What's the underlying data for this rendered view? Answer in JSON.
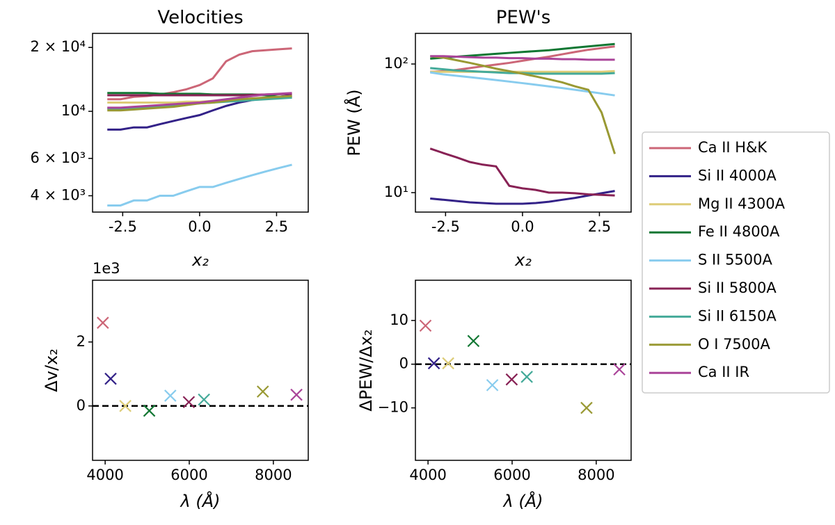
{
  "chart_data": [
    {
      "type": "line",
      "title": "Velocities",
      "xlabel": "x₂",
      "log_y": true,
      "x": [
        -3,
        -2.57,
        -2.14,
        -1.71,
        -1.29,
        -0.86,
        -0.43,
        0,
        0.43,
        0.86,
        1.29,
        1.71,
        2.14,
        2.57,
        3
      ],
      "xlim": [
        -3.48,
        3.53
      ],
      "xticks": [
        -2.5,
        {
          "value": 0,
          "label": "0.0"
        },
        2.5
      ],
      "ylim": [
        3350,
        23300
      ],
      "yticks": [
        {
          "value": 4000,
          "label": "4 × 10³"
        },
        {
          "value": 6000,
          "label": "6 × 10³"
        },
        {
          "value": 10000,
          "label": "10⁴"
        },
        {
          "value": 20000,
          "label": "2 × 10⁴"
        }
      ],
      "series": [
        {
          "name": "Ca II H&K",
          "color": "#cc6677",
          "values": [
            11400,
            11400,
            11700,
            11800,
            12000,
            12300,
            12700,
            13300,
            14300,
            17200,
            18500,
            19200,
            19400,
            19600,
            19800
          ]
        },
        {
          "name": "Si II 4000A",
          "color": "#332288",
          "values": [
            8200,
            8200,
            8400,
            8400,
            8700,
            9000,
            9300,
            9600,
            10100,
            10600,
            11000,
            11300,
            11500,
            11700,
            11900
          ]
        },
        {
          "name": "Mg II 4300A",
          "color": "#ddcc77",
          "values": [
            11000,
            11000,
            11000,
            11000,
            11000,
            11000,
            11100,
            11100,
            11200,
            11300,
            11400,
            11500,
            11600,
            11700,
            11800
          ]
        },
        {
          "name": "Fe II 4800A",
          "color": "#117733",
          "values": [
            12200,
            12200,
            12200,
            12200,
            12100,
            12100,
            12100,
            12100,
            12000,
            12000,
            12000,
            12000,
            11900,
            11700,
            11600
          ]
        },
        {
          "name": "S II 5500A",
          "color": "#88ccee",
          "values": [
            3600,
            3600,
            3800,
            3800,
            4000,
            4000,
            4200,
            4400,
            4400,
            4600,
            4800,
            5000,
            5200,
            5400,
            5600
          ]
        },
        {
          "name": "Si II 5800A",
          "color": "#882255",
          "values": [
            11900,
            11900,
            11900,
            11900,
            11900,
            11900,
            11900,
            11900,
            11900,
            11900,
            11900,
            11950,
            12000,
            12050,
            12100
          ]
        },
        {
          "name": "Si II 6150A",
          "color": "#44aa99",
          "values": [
            10300,
            10300,
            10400,
            10500,
            10600,
            10700,
            10800,
            10900,
            11000,
            11100,
            11200,
            11300,
            11400,
            11500,
            11600
          ]
        },
        {
          "name": "O I 7500A",
          "color": "#999933",
          "values": [
            10100,
            10100,
            10200,
            10300,
            10400,
            10500,
            10700,
            10900,
            11000,
            11200,
            11400,
            11500,
            11600,
            11700,
            11800
          ]
        },
        {
          "name": "Ca II IR",
          "color": "#aa4499",
          "values": [
            10400,
            10400,
            10500,
            10600,
            10700,
            10800,
            10900,
            11000,
            11200,
            11400,
            11600,
            11800,
            12000,
            12100,
            12200
          ]
        }
      ]
    },
    {
      "type": "line",
      "title": "PEW's",
      "xlabel": "x₂",
      "ylabel": "PEW (Å)",
      "log_y": true,
      "x": [
        -3,
        -2.57,
        -2.14,
        -1.71,
        -1.29,
        -0.86,
        -0.43,
        0,
        0.43,
        0.86,
        1.29,
        1.71,
        2.14,
        2.57,
        3
      ],
      "xlim": [
        -3.48,
        3.53
      ],
      "xticks": [
        -2.5,
        {
          "value": 0,
          "label": "0.0"
        },
        2.5
      ],
      "ylim": [
        7.06,
        173
      ],
      "yticks": [
        {
          "value": 10,
          "label": "10¹"
        },
        {
          "value": 100,
          "label": "10²"
        }
      ],
      "series": [
        {
          "color": "#cc6677",
          "values": [
            87,
            88,
            90,
            93,
            96,
            99,
            102,
            106,
            110,
            114,
            119,
            124,
            129,
            133,
            137
          ]
        },
        {
          "color": "#332288",
          "values": [
            9.0,
            8.8,
            8.6,
            8.4,
            8.3,
            8.2,
            8.2,
            8.2,
            8.3,
            8.5,
            8.8,
            9.1,
            9.5,
            9.9,
            10.3
          ]
        },
        {
          "color": "#ddcc77",
          "values": [
            87,
            87,
            87,
            87,
            87,
            87,
            87,
            87,
            87,
            87,
            87,
            87,
            87,
            87,
            88
          ]
        },
        {
          "color": "#117733",
          "values": [
            110,
            112,
            114,
            116,
            118,
            120,
            122,
            124,
            126,
            128,
            131,
            134,
            137,
            140,
            143
          ]
        },
        {
          "color": "#88ccee",
          "values": [
            86,
            83,
            81,
            79,
            77,
            75,
            73,
            71,
            69,
            67,
            65,
            63,
            61,
            59,
            57
          ]
        },
        {
          "color": "#882255",
          "values": [
            22,
            20.3,
            18.8,
            17.3,
            16.5,
            16,
            11.3,
            10.8,
            10.5,
            10,
            10,
            9.9,
            9.7,
            9.6,
            9.5
          ]
        },
        {
          "color": "#44aa99",
          "values": [
            93,
            91,
            89,
            88,
            87,
            86,
            85,
            85,
            84,
            84,
            84,
            84,
            84,
            84,
            85
          ]
        },
        {
          "color": "#999933",
          "values": [
            115,
            112,
            107,
            102,
            97,
            92,
            88,
            84,
            80,
            76,
            72,
            67,
            63,
            42,
            20
          ]
        },
        {
          "color": "#aa4499",
          "values": [
            115,
            115,
            114,
            113,
            112,
            112,
            111,
            111,
            110,
            110,
            109,
            109,
            108,
            108,
            108
          ]
        }
      ]
    },
    {
      "type": "scatter",
      "xlabel": "λ (Å)",
      "ylabel": "Δv/x₂",
      "y_offset_label": "1e3",
      "hline": 0,
      "xlim": [
        3700,
        8830
      ],
      "xticks": [
        4000,
        6000,
        8000
      ],
      "ylim": [
        -1.7,
        3.93
      ],
      "yticks": [
        0,
        2
      ],
      "x": [
        3945,
        4130,
        4480,
        5050,
        5550,
        5990,
        6350,
        7750,
        8550
      ],
      "values": [
        2.6,
        0.85,
        0,
        -0.15,
        0.32,
        0.12,
        0.2,
        0.45,
        0.35
      ],
      "colors": [
        "#cc6677",
        "#332288",
        "#ddcc77",
        "#117733",
        "#88ccee",
        "#882255",
        "#44aa99",
        "#999933",
        "#aa4499"
      ]
    },
    {
      "type": "scatter",
      "xlabel": "λ (Å)",
      "ylabel": "ΔPEW/Δx₂",
      "hline": 0,
      "xlim": [
        3700,
        8830
      ],
      "xticks": [
        4000,
        6000,
        8000
      ],
      "ylim": [
        -22,
        19.2
      ],
      "yticks": [
        {
          "value": -10,
          "label": "−10"
        },
        0,
        10
      ],
      "x": [
        3940,
        4140,
        4480,
        5080,
        5530,
        5990,
        6350,
        7770,
        8550
      ],
      "values": [
        8.8,
        0.2,
        0.2,
        5.3,
        -4.8,
        -3.5,
        -2.9,
        -10,
        -1.2
      ],
      "colors": [
        "#cc6677",
        "#332288",
        "#ddcc77",
        "#117733",
        "#88ccee",
        "#882255",
        "#44aa99",
        "#999933",
        "#aa4499"
      ]
    }
  ]
}
